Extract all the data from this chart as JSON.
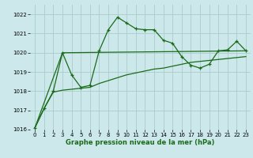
{
  "xlabel": "Graphe pression niveau de la mer (hPa)",
  "bg_color": "#cce8ea",
  "grid_color": "#aacccc",
  "line_color": "#1a6b1a",
  "ylim": [
    1016.0,
    1022.5
  ],
  "xlim": [
    -0.5,
    23.5
  ],
  "yticks": [
    1016,
    1017,
    1018,
    1019,
    1020,
    1021,
    1022
  ],
  "xticks": [
    0,
    1,
    2,
    3,
    4,
    5,
    6,
    7,
    8,
    9,
    10,
    11,
    12,
    13,
    14,
    15,
    16,
    17,
    18,
    19,
    20,
    21,
    22,
    23
  ],
  "series1_x": [
    0,
    1,
    2,
    3,
    4,
    5,
    6,
    7,
    8,
    9,
    10,
    11,
    12,
    13,
    14,
    15,
    16,
    17,
    18,
    19,
    20,
    21,
    22,
    23
  ],
  "series1_y": [
    1016.1,
    1017.1,
    1018.0,
    1020.0,
    1018.85,
    1018.2,
    1018.3,
    1020.1,
    1021.2,
    1021.85,
    1021.55,
    1021.25,
    1021.2,
    1021.2,
    1020.65,
    1020.5,
    1019.8,
    1019.35,
    1019.2,
    1019.4,
    1020.1,
    1020.15,
    1020.6,
    1020.1
  ],
  "series2_x": [
    0,
    3,
    23
  ],
  "series2_y": [
    1016.1,
    1020.0,
    1020.1
  ],
  "series3_x": [
    0,
    1,
    2,
    3,
    4,
    5,
    6,
    7,
    8,
    9,
    10,
    11,
    12,
    13,
    14,
    15,
    16,
    17,
    18,
    19,
    20,
    21,
    22,
    23
  ],
  "series3_y": [
    1016.1,
    1017.1,
    1017.95,
    1018.05,
    1018.1,
    1018.15,
    1018.2,
    1018.4,
    1018.55,
    1018.7,
    1018.85,
    1018.95,
    1019.05,
    1019.15,
    1019.2,
    1019.3,
    1019.4,
    1019.5,
    1019.55,
    1019.6,
    1019.65,
    1019.7,
    1019.75,
    1019.8
  ]
}
